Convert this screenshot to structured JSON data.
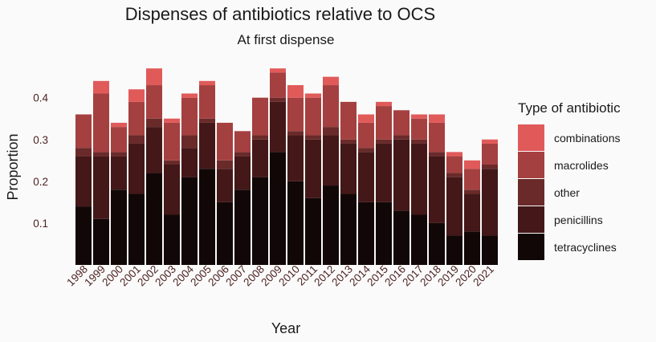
{
  "chart_data": {
    "type": "bar",
    "stacked": true,
    "title": "Dispenses of antibiotics relative to OCS",
    "subtitle": "At first dispense",
    "xlabel": "Year",
    "ylabel": "Proportion",
    "ylim": [
      0,
      0.48
    ],
    "yticks": [
      0.1,
      0.2,
      0.3,
      0.4
    ],
    "grid": false,
    "legend_title": "Type of antibiotic",
    "legend_position": "right",
    "categories": [
      "1998",
      "1999",
      "2000",
      "2001",
      "2002",
      "2003",
      "2004",
      "2005",
      "2006",
      "2007",
      "2008",
      "2009",
      "2010",
      "2011",
      "2012",
      "2013",
      "2014",
      "2015",
      "2016",
      "2017",
      "2018",
      "2019",
      "2020",
      "2021"
    ],
    "series": [
      {
        "name": "tetracyclines",
        "color": "#120707",
        "values": [
          0.14,
          0.11,
          0.18,
          0.17,
          0.22,
          0.12,
          0.21,
          0.23,
          0.15,
          0.18,
          0.21,
          0.27,
          0.2,
          0.16,
          0.19,
          0.17,
          0.15,
          0.15,
          0.13,
          0.12,
          0.1,
          0.07,
          0.08,
          0.07
        ]
      },
      {
        "name": "penicillins",
        "color": "#441818",
        "values": [
          0.12,
          0.15,
          0.08,
          0.12,
          0.11,
          0.12,
          0.07,
          0.11,
          0.08,
          0.08,
          0.09,
          0.12,
          0.11,
          0.14,
          0.12,
          0.12,
          0.12,
          0.14,
          0.17,
          0.17,
          0.16,
          0.14,
          0.09,
          0.16
        ]
      },
      {
        "name": "other",
        "color": "#6a2a2a",
        "values": [
          0.02,
          0.01,
          0.01,
          0.02,
          0.02,
          0.01,
          0.03,
          0.01,
          0.02,
          0.01,
          0.01,
          0.01,
          0.01,
          0.01,
          0.02,
          0.01,
          0.01,
          0.01,
          0.01,
          0.01,
          0.01,
          0.01,
          0.01,
          0.01
        ]
      },
      {
        "name": "macrolides",
        "color": "#a54040",
        "values": [
          0.08,
          0.14,
          0.06,
          0.08,
          0.08,
          0.09,
          0.09,
          0.08,
          0.09,
          0.05,
          0.09,
          0.06,
          0.08,
          0.09,
          0.1,
          0.09,
          0.06,
          0.08,
          0.06,
          0.05,
          0.07,
          0.04,
          0.05,
          0.05
        ]
      },
      {
        "name": "combinations",
        "color": "#e15a5a",
        "values": [
          0.0,
          0.03,
          0.01,
          0.03,
          0.04,
          0.01,
          0.01,
          0.01,
          0.0,
          0.0,
          0.0,
          0.01,
          0.03,
          0.01,
          0.02,
          0.0,
          0.02,
          0.01,
          0.0,
          0.01,
          0.02,
          0.01,
          0.02,
          0.01
        ]
      }
    ],
    "legend_order": [
      "combinations",
      "macrolides",
      "other",
      "penicillins",
      "tetracyclines"
    ]
  }
}
